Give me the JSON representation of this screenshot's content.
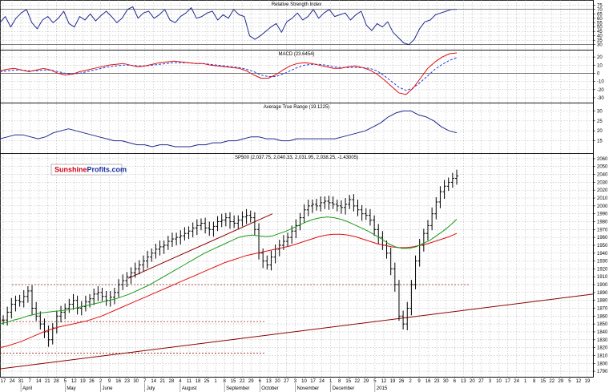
{
  "brand": {
    "part1": "Sunshine",
    "part2": "Profits.com",
    "red": "#d0021b",
    "blue": "#1a2fa0"
  },
  "colors": {
    "price": "#000000",
    "ma_fast": "#1a9a1a",
    "ma_slow": "#e01010",
    "indicator": "#1f2a8c",
    "macd_signal": "#1f3fe0",
    "trend": "#8b0000",
    "support": "#8b0000"
  },
  "chart_data": [
    {
      "type": "line",
      "title": "Relative Strength Index",
      "y_ticks": [
        "75",
        "70",
        "65",
        "60",
        "55",
        "50",
        "45",
        "40",
        "35",
        "30"
      ],
      "ylim": [
        27,
        78
      ],
      "ref_lines": [
        30,
        70
      ],
      "series": [
        {
          "values": [
            55,
            62,
            50,
            60,
            66,
            70,
            55,
            48,
            58,
            62,
            55,
            60,
            68,
            54,
            50,
            62,
            58,
            65,
            57,
            63,
            68,
            62,
            55,
            60,
            70,
            73,
            60,
            66,
            68,
            60,
            64,
            70,
            58,
            55,
            62,
            66,
            72,
            60,
            62,
            66,
            68,
            58,
            64,
            60,
            70,
            64,
            62,
            40,
            36,
            40,
            45,
            50,
            54,
            44,
            56,
            60,
            66,
            58,
            62,
            70,
            60,
            66,
            70,
            62,
            64,
            66,
            58,
            64,
            68,
            52,
            46,
            54,
            50,
            56,
            44,
            38,
            32,
            30,
            36,
            48,
            56,
            58,
            64,
            66,
            68,
            70,
            70
          ]
        }
      ]
    },
    {
      "type": "line",
      "title": "MACD (23.6454)",
      "y_ticks": [
        "20",
        "10",
        "0",
        "-10",
        "-20",
        "-30"
      ],
      "ylim": [
        -33,
        26
      ],
      "series": [
        {
          "values": [
            3,
            5,
            6,
            4,
            2,
            4,
            6,
            4,
            0,
            -2,
            -1,
            2,
            4,
            6,
            8,
            10,
            11,
            12,
            10,
            8,
            9,
            11,
            13,
            14,
            15,
            14,
            13,
            12,
            12,
            10,
            9,
            8,
            7,
            6,
            3,
            -2,
            -6,
            -6,
            -2,
            4,
            9,
            12,
            13,
            12,
            10,
            8,
            6,
            6,
            8,
            9,
            7,
            4,
            -1,
            -8,
            -16,
            -24,
            -26,
            -18,
            -6,
            6,
            14,
            20,
            24,
            25
          ]
        },
        {
          "values": [
            2,
            3,
            4,
            4,
            3,
            3,
            4,
            4,
            2,
            0,
            -1,
            0,
            2,
            4,
            6,
            8,
            9,
            10,
            10,
            9,
            9,
            10,
            11,
            12,
            13,
            13,
            13,
            12,
            12,
            11,
            10,
            9,
            8,
            7,
            5,
            2,
            -2,
            -4,
            -4,
            -1,
            3,
            7,
            10,
            11,
            11,
            10,
            8,
            7,
            7,
            7,
            7,
            6,
            3,
            -3,
            -10,
            -17,
            -21,
            -18,
            -11,
            -3,
            5,
            11,
            16,
            19
          ]
        }
      ]
    },
    {
      "type": "line",
      "title": "Average True Range (19.1225)",
      "y_ticks": [
        "30",
        "25",
        "20",
        "15"
      ],
      "ylim": [
        10,
        33
      ],
      "series": [
        {
          "values": [
            16,
            17,
            18,
            18,
            17,
            16,
            17,
            19,
            20,
            21,
            20,
            19,
            18,
            17,
            16,
            15,
            15,
            14,
            13,
            13,
            12,
            13,
            13,
            12,
            12,
            12,
            13,
            13,
            14,
            14,
            15,
            15,
            16,
            17,
            17,
            16,
            16,
            15,
            15,
            16,
            16,
            16,
            16,
            16,
            16,
            17,
            18,
            19,
            20,
            22,
            24,
            27,
            29,
            30,
            30,
            28,
            27,
            25,
            22,
            20,
            19
          ]
        }
      ]
    },
    {
      "type": "line",
      "title": "SP500 (2,037.75, 2,040.33, 2,031.95, 2,038.25, -1.43005)",
      "y_ticks": [
        "2060",
        "2050",
        "2040",
        "2030",
        "2020",
        "2010",
        "2000",
        "1990",
        "1980",
        "1970",
        "1960",
        "1950",
        "1940",
        "1930",
        "1920",
        "1910",
        "1900",
        "1890",
        "1880",
        "1870",
        "1860",
        "1850",
        "1840",
        "1830",
        "1820",
        "1810",
        "1800",
        "1790"
      ],
      "ylim": [
        1786,
        2064
      ],
      "x_ticks": [
        "17",
        "24",
        "31",
        "7",
        "14",
        "21",
        "28",
        "5",
        "12",
        "19",
        "26",
        "2",
        "9",
        "16",
        "23",
        "30",
        "7",
        "14",
        "21",
        "28",
        "4",
        "11",
        "18",
        "25",
        "1",
        "8",
        "15",
        "22",
        "29",
        "6",
        "13",
        "20",
        "27",
        "3",
        "10",
        "17",
        "24",
        "1",
        "8",
        "15",
        "22",
        "29",
        "5",
        "12",
        "19",
        "26",
        "2",
        "9",
        "16",
        "23",
        "30",
        "6",
        "13",
        "20",
        "27",
        "3",
        "10",
        "17",
        "24",
        "1",
        "8",
        "15",
        "22",
        "29",
        "5",
        "12",
        "19"
      ],
      "months": [
        "April",
        "May",
        "June",
        "July",
        "August",
        "September",
        "October",
        "November",
        "December",
        "2015"
      ],
      "close": [
        1855,
        1865,
        1875,
        1880,
        1878,
        1885,
        1892,
        1870,
        1860,
        1850,
        1840,
        1830,
        1845,
        1860,
        1865,
        1870,
        1875,
        1880,
        1870,
        1872,
        1878,
        1882,
        1888,
        1890,
        1885,
        1880,
        1884,
        1890,
        1900,
        1905,
        1910,
        1915,
        1920,
        1925,
        1930,
        1935,
        1940,
        1945,
        1948,
        1950,
        1955,
        1958,
        1960,
        1962,
        1965,
        1968,
        1972,
        1975,
        1978,
        1972,
        1970,
        1974,
        1980,
        1982,
        1985,
        1980,
        1978,
        1982,
        1986,
        1988,
        1985,
        1970,
        1940,
        1930,
        1925,
        1935,
        1945,
        1950,
        1955,
        1960,
        1968,
        1975,
        1985,
        1995,
        2000,
        2002,
        2000,
        2004,
        2006,
        2004,
        2002,
        2000,
        1998,
        2002,
        2008,
        2000,
        1995,
        1990,
        1988,
        1982,
        1970,
        1960,
        1950,
        1940,
        1920,
        1900,
        1860,
        1850,
        1870,
        1900,
        1930,
        1950,
        1965,
        1975,
        1990,
        2005,
        2018,
        2025,
        2030,
        2035,
        2038
      ],
      "ma_fast": [
        1850,
        1852,
        1855,
        1857,
        1860,
        1862,
        1864,
        1865,
        1866,
        1867,
        1868,
        1870,
        1872,
        1874,
        1876,
        1878,
        1880,
        1882,
        1885,
        1888,
        1892,
        1896,
        1900,
        1905,
        1910,
        1915,
        1920,
        1925,
        1930,
        1935,
        1940,
        1944,
        1948,
        1952,
        1956,
        1960,
        1962,
        1963,
        1962,
        1961,
        1962,
        1965,
        1968,
        1972,
        1976,
        1980,
        1983,
        1985,
        1986,
        1985,
        1983,
        1980,
        1976,
        1972,
        1968,
        1963,
        1958,
        1952,
        1948,
        1946,
        1946,
        1948,
        1952,
        1956,
        1962,
        1968,
        1975,
        1983
      ],
      "ma_slow": [
        1820,
        1822,
        1825,
        1828,
        1832,
        1836,
        1840,
        1843,
        1846,
        1848,
        1850,
        1852,
        1854,
        1857,
        1860,
        1864,
        1868,
        1872,
        1876,
        1880,
        1884,
        1888,
        1892,
        1896,
        1900,
        1904,
        1908,
        1912,
        1916,
        1920,
        1924,
        1928,
        1931,
        1934,
        1937,
        1939,
        1941,
        1943,
        1945,
        1947,
        1949,
        1952,
        1955,
        1958,
        1961,
        1963,
        1964,
        1964,
        1963,
        1961,
        1958,
        1955,
        1952,
        1950,
        1948,
        1947,
        1947,
        1948,
        1950,
        1952,
        1955,
        1958,
        1961,
        1965
      ],
      "support_levels": [
        1900,
        1853,
        1813
      ],
      "trend_line": {
        "from": 1793,
        "to": 1888
      },
      "channel_line": {
        "from": 1908,
        "to": 1990
      }
    }
  ]
}
